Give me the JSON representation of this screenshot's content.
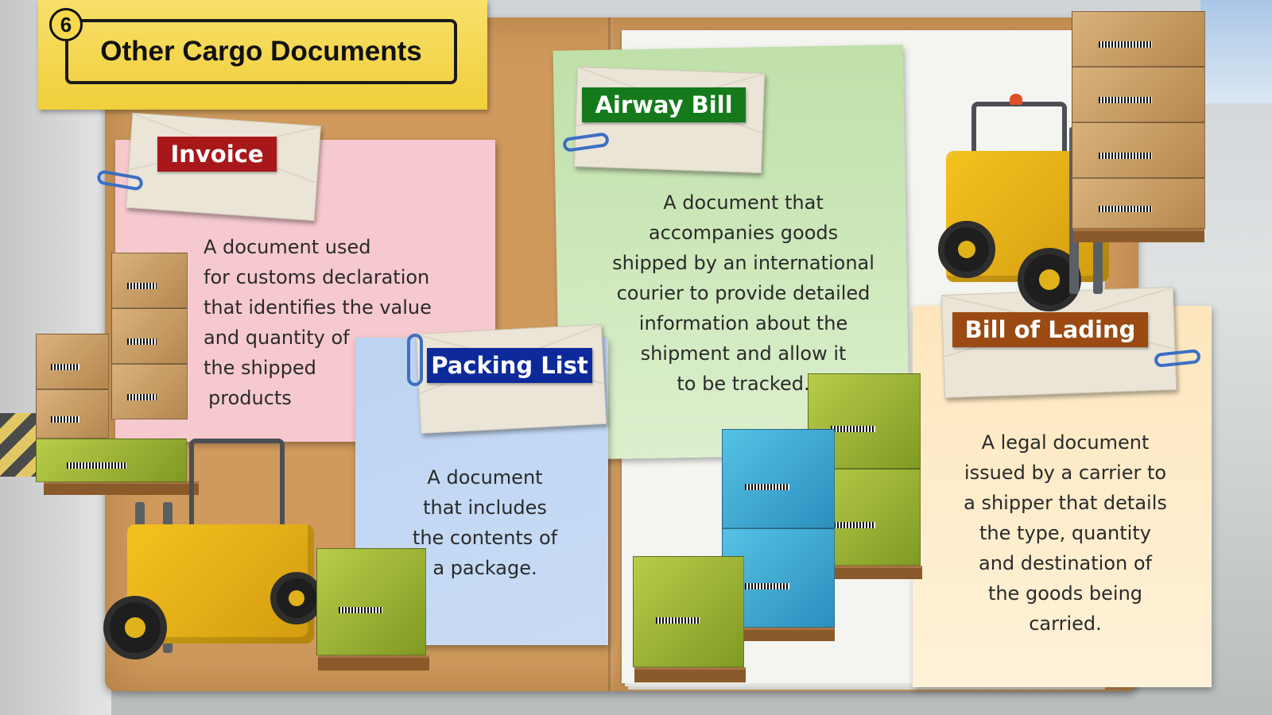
{
  "title": {
    "step": "6",
    "text": "Other Cargo Documents"
  },
  "documents": {
    "invoice": {
      "label": "Invoice",
      "lines": [
        "A document used",
        "for customs declaration",
        "that identifies the value",
        "and quantity of",
        "the shipped",
        "products"
      ]
    },
    "packing_list": {
      "label": "Packing List",
      "lines": [
        "A document",
        "that includes",
        "the contents of",
        "a package."
      ]
    },
    "airway_bill": {
      "label": "Airway Bill",
      "lines": [
        "A document that",
        "accompanies goods",
        "shipped by an international",
        "courier to provide detailed",
        "information about the",
        "shipment and allow it",
        "to be tracked."
      ]
    },
    "bill_of_lading": {
      "label": "Bill of Lading",
      "lines": [
        "A legal document",
        "issued by a carrier to",
        "a shipper that details",
        "the type, quantity",
        "and destination of",
        "the goods being",
        "carried."
      ]
    }
  },
  "colors": {
    "invoice_label": "#a8181b",
    "packing_label": "#0e2a9a",
    "airway_label": "#157a1c",
    "bill_label": "#9a4a12",
    "title_tab": "#f0cf3a"
  }
}
